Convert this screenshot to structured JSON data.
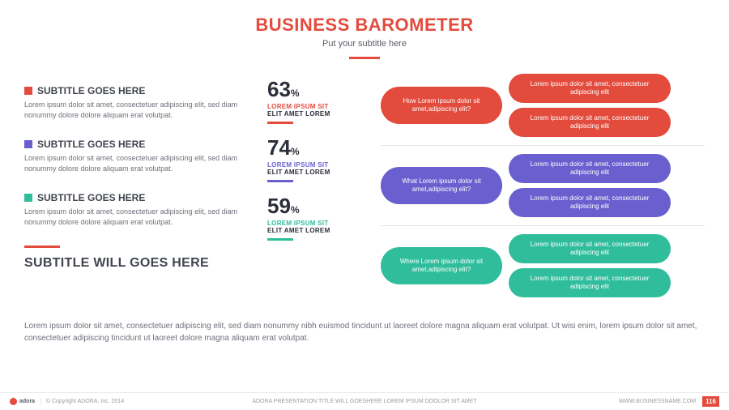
{
  "colors": {
    "red": "#e34b3d",
    "purple": "#6a5fcf",
    "teal": "#2fbd9b",
    "text_dark": "#414550"
  },
  "header": {
    "title": "BUSINESS BAROMETER",
    "subtitle": "Put your subtitle here"
  },
  "left": {
    "items": [
      {
        "color": "#e34b3d",
        "title": "SUBTITLE GOES HERE",
        "body": "Lorem ipsum dolor sit amet, consectetuer adipiscing elit, sed diam nonummy dolore dolore  aliquam erat volutpat."
      },
      {
        "color": "#6a5fcf",
        "title": "SUBTITLE GOES HERE",
        "body": "Lorem ipsum dolor sit amet, consectetuer adipiscing elit, sed diam nonummy dolore dolore  aliquam erat volutpat."
      },
      {
        "color": "#2fbd9b",
        "title": "SUBTITLE GOES HERE",
        "body": "Lorem ipsum dolor sit amet, consectetuer adipiscing elit, sed diam nonummy dolore dolore  aliquam erat volutpat."
      }
    ],
    "subtitle2": "SUBTITLE WILL GOES HERE"
  },
  "stats": [
    {
      "value": "63",
      "pct": "%",
      "line1": "LOREM IPSUM SIT",
      "line2": "ELIT AMET LOREM",
      "color": "#e34b3d"
    },
    {
      "value": "74",
      "pct": "%",
      "line1": "LOREM IPSUM SIT",
      "line2": "ELIT AMET LOREM",
      "color": "#6a5fcf"
    },
    {
      "value": "59",
      "pct": "%",
      "line1": "LOREM IPSUM SIT",
      "line2": "ELIT AMET LOREM",
      "color": "#2fbd9b"
    }
  ],
  "rows": [
    {
      "color": "#e34b3d",
      "question": "How Lorem ipsum dolor sit amet,adipiscing elit?",
      "answers": [
        "Lorem ipsum dolor sit amet, consectetuer adipiscing elit",
        "Lorem ipsum dolor sit amet, consectetuer adipiscing elit"
      ]
    },
    {
      "color": "#6a5fcf",
      "question": "What Lorem ipsum dolor sit amet,adipiscing elit?",
      "answers": [
        "Lorem ipsum dolor sit amet, consectetuer adipiscing elit",
        "Lorem ipsum dolor sit amet, consectetuer adipiscing elit"
      ]
    },
    {
      "color": "#2fbd9b",
      "question": "Where Lorem ipsum dolor sit amet,adipiscing elit?",
      "answers": [
        "Lorem ipsum dolor sit amet, consectetuer adipiscing elit",
        "Lorem ipsum dolor sit amet, consectetuer adipiscing elit"
      ]
    }
  ],
  "bottom_text": "Lorem ipsum dolor sit amet, consectetuer adipiscing elit, sed diam nonummy nibh euismod tincidunt ut laoreet dolore magna aliquam erat volutpat. Ut wisi enim, lorem ipsum dolor sit amet, consectetuer adipiscing tincidunt ut laoreet dolore magna aliquam erat volutpat.",
  "footer": {
    "logo": "adora",
    "copyright": "© Copyright ADORA, Inc. 2014",
    "center": "ADORA PRESENTATION TITLE WILL GOESHERE LOREM IPSUM DOOLOR SIT AMET",
    "site": "WWW.BUSINESSNAME.COM",
    "page": "116"
  }
}
